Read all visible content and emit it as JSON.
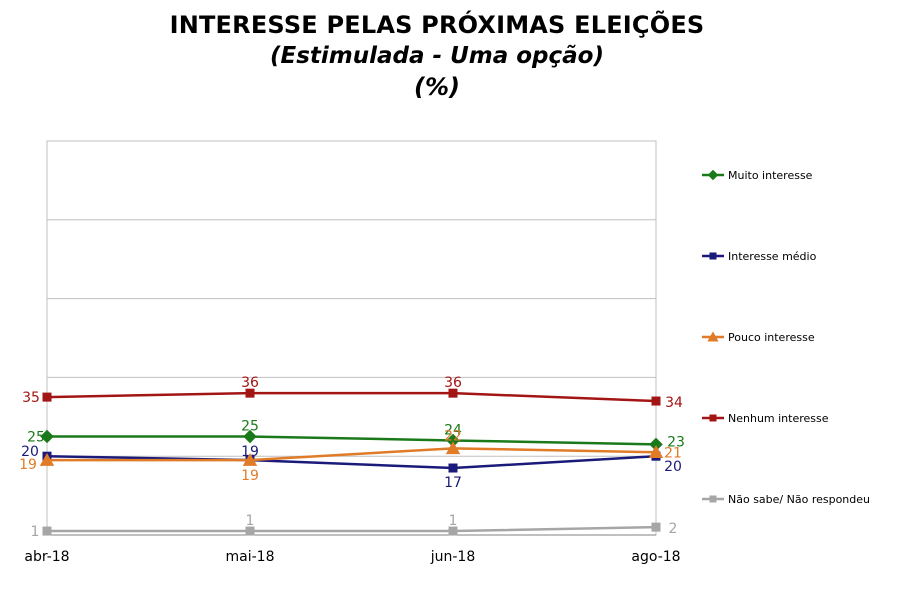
{
  "title": {
    "line1": "INTERESSE PELAS PRÓXIMAS ELEIÇÕES",
    "line2": "(Estimulada - Uma opção)",
    "line3": "(%)"
  },
  "chart_data": {
    "type": "line",
    "title": "INTERESSE PELAS PRÓXIMAS ELEIÇÕES",
    "subtitle": "(Estimulada - Uma opção) (%)",
    "x": [
      "abr-18",
      "mai-18",
      "jun-18",
      "ago-18"
    ],
    "ylim": [
      0,
      100
    ],
    "grid": true,
    "legend_position": "right",
    "series": [
      {
        "name": "Muito interesse",
        "values": [
          25,
          25,
          24,
          23
        ],
        "color": "#1a7a1a",
        "marker": "diamond"
      },
      {
        "name": "Interesse médio",
        "values": [
          20,
          19,
          17,
          20
        ],
        "color": "#1a1a7a",
        "marker": "square"
      },
      {
        "name": "Pouco interesse",
        "values": [
          19,
          19,
          22,
          21
        ],
        "color": "#e07b28",
        "marker": "triangle"
      },
      {
        "name": "Nenhum interesse",
        "values": [
          35,
          36,
          36,
          34
        ],
        "color": "#a31515",
        "marker": "square"
      },
      {
        "name": "Não sabe/ Não respondeu",
        "values": [
          1,
          1,
          1,
          2
        ],
        "color": "#a6a6a6",
        "marker": "square"
      }
    ]
  }
}
